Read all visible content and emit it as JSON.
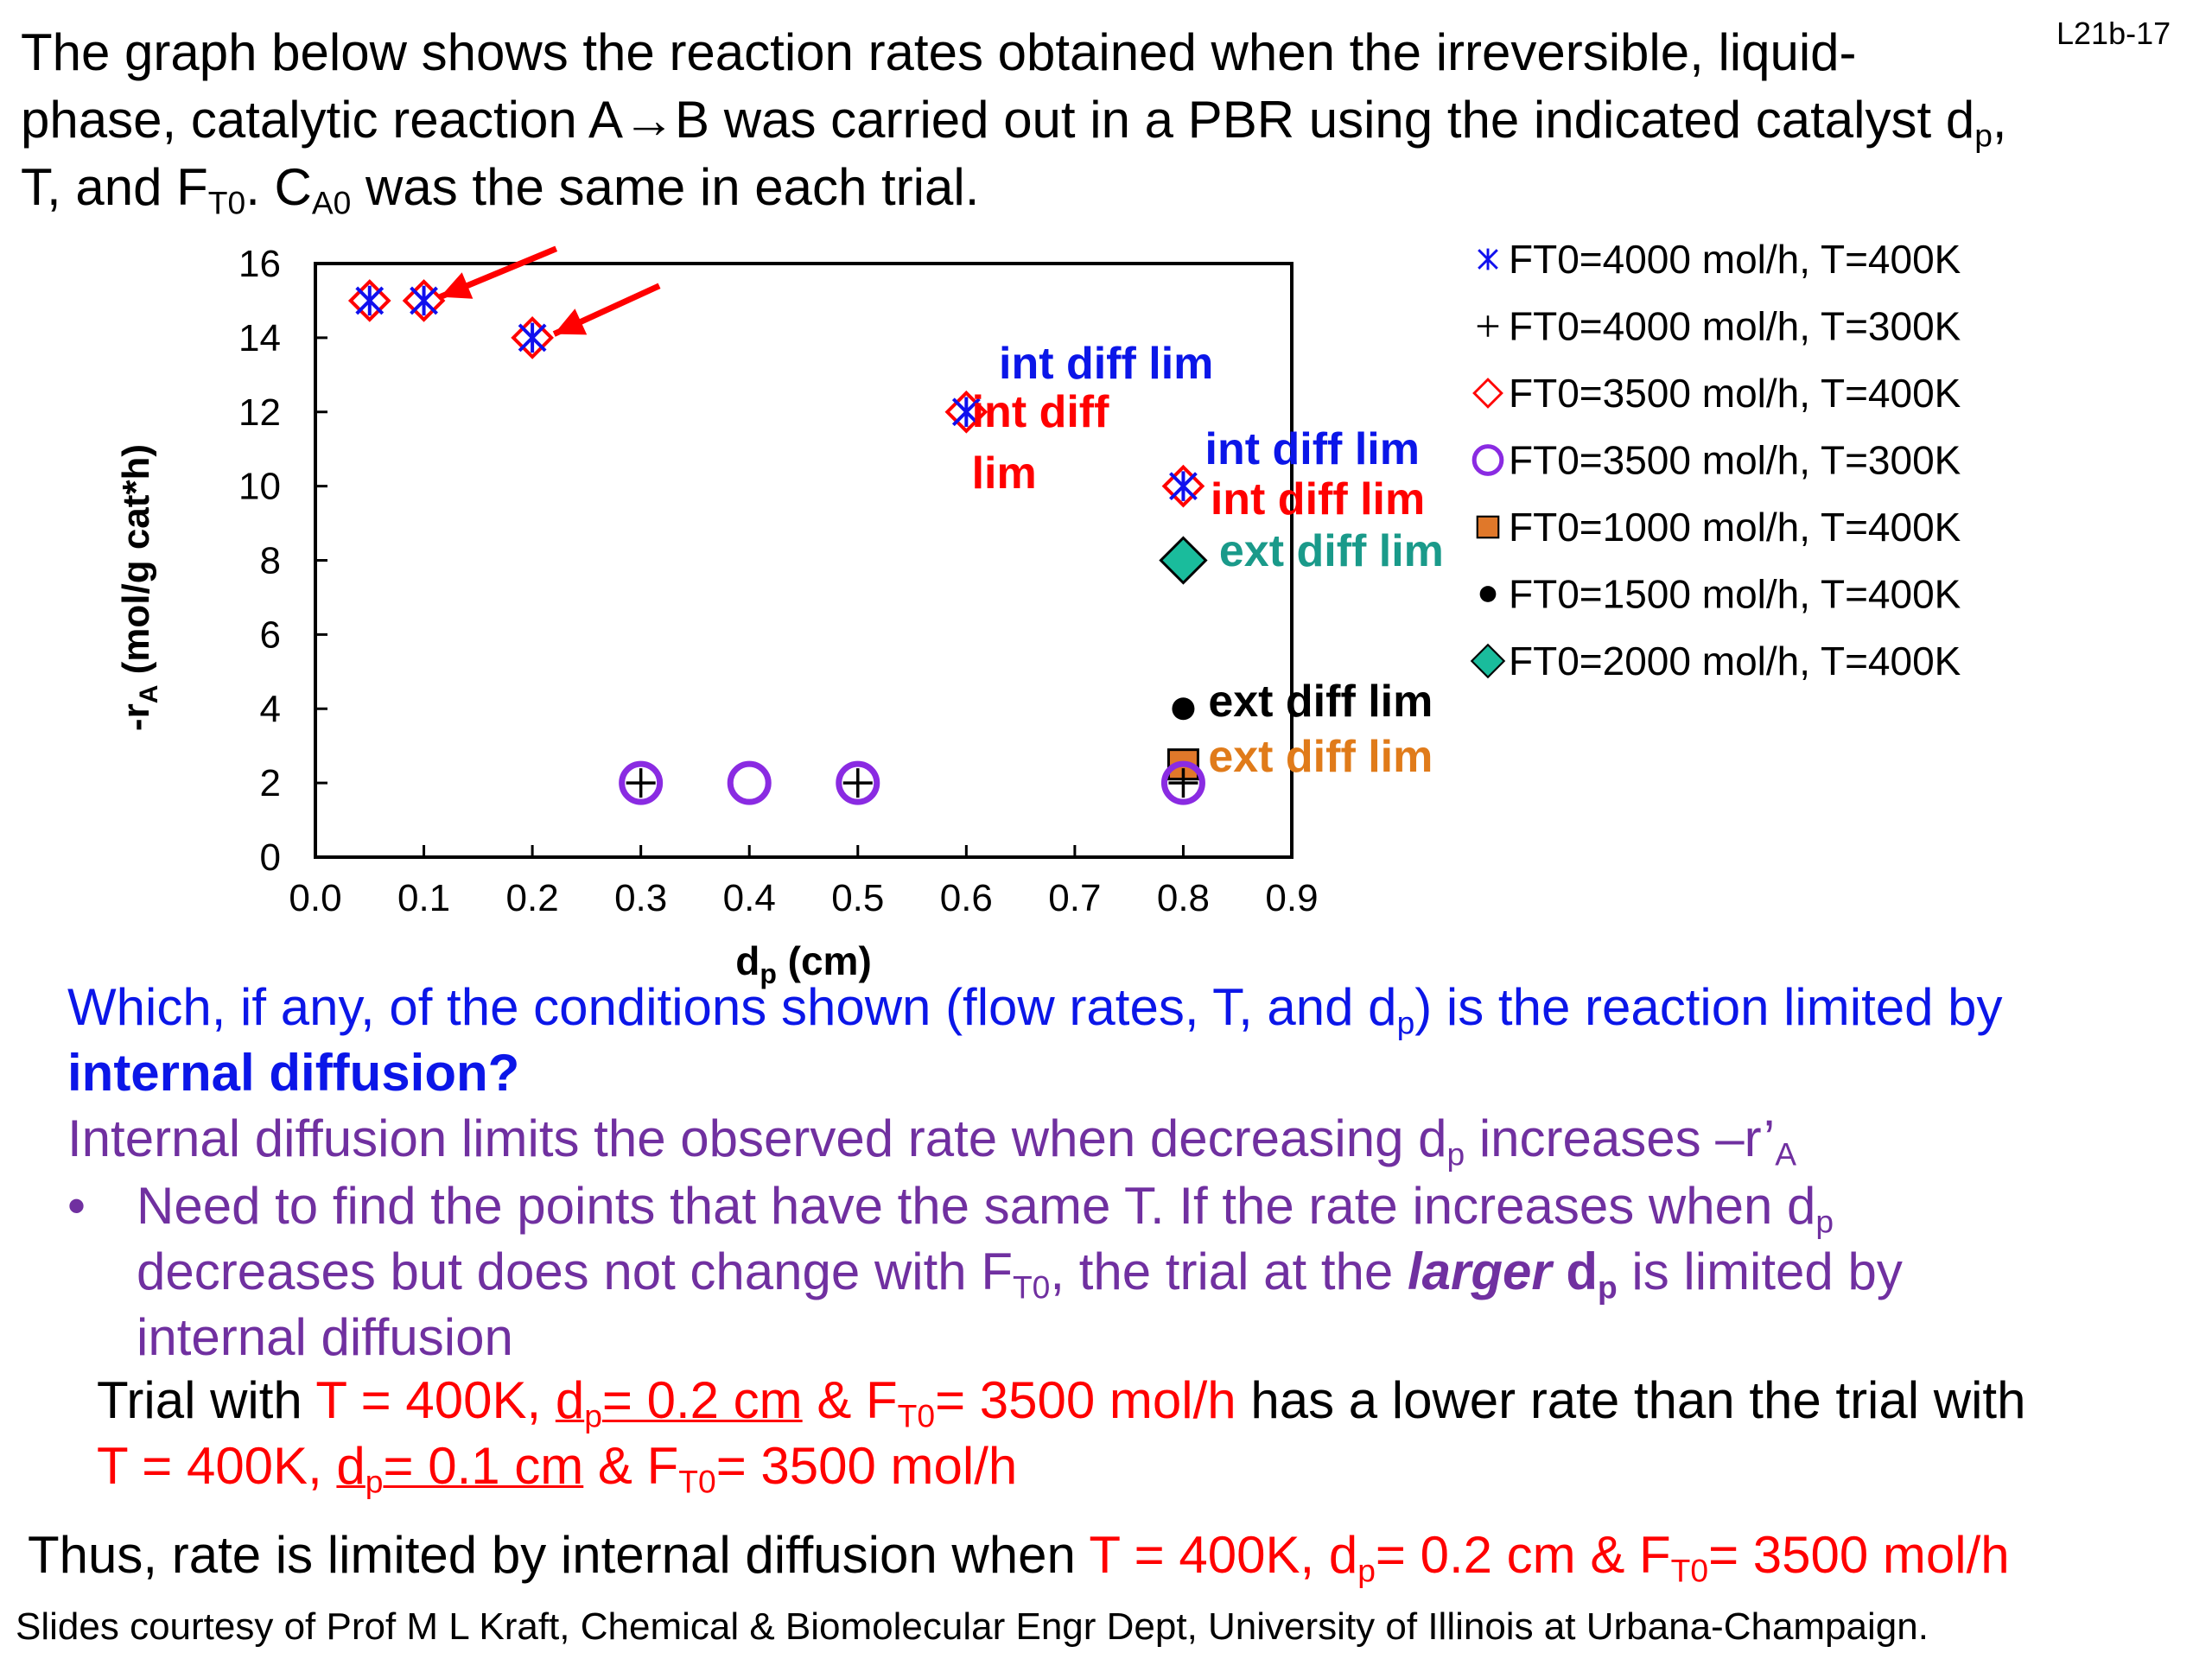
{
  "slide_id": "L21b-17",
  "intro": {
    "line1": "The graph below shows the reaction rates obtained when the irreversible, liquid-",
    "line2_a": "phase, catalytic reaction A→B was carried out in a PBR using the indicated catalyst d",
    "line2_sub": "p",
    "line2_b": ",",
    "line3_a": "T, and F",
    "line3_sub1": "T0",
    "line3_b": ". C",
    "line3_sub2": "A0",
    "line3_c": " was the same in each trial."
  },
  "chart_data": {
    "type": "scatter",
    "xlabel_main": "d",
    "xlabel_sub": "p",
    "xlabel_unit": " (cm)",
    "ylabel_main": "-r",
    "ylabel_sub": "A",
    "ylabel_unit": " (mol/g cat*h)",
    "xlim": [
      0.0,
      0.9
    ],
    "ylim": [
      0,
      16
    ],
    "x_ticks": [
      "0.0",
      "0.1",
      "0.2",
      "0.3",
      "0.4",
      "0.5",
      "0.6",
      "0.7",
      "0.8",
      "0.9"
    ],
    "y_ticks": [
      "0",
      "2",
      "4",
      "6",
      "8",
      "10",
      "12",
      "14",
      "16"
    ],
    "legend_position": "right",
    "series": [
      {
        "name": "FT0=4000 mol/h, T=400K",
        "marker": "star",
        "color": "#1010ee",
        "points": [
          [
            0.05,
            15
          ],
          [
            0.1,
            15
          ],
          [
            0.2,
            14
          ],
          [
            0.6,
            12
          ],
          [
            0.8,
            10
          ]
        ]
      },
      {
        "name": "FT0=4000 mol/h, T=300K",
        "marker": "plus",
        "color": "#000000",
        "points": [
          [
            0.3,
            2
          ],
          [
            0.5,
            2
          ],
          [
            0.8,
            2
          ]
        ]
      },
      {
        "name": "FT0=3500 mol/h, T=400K",
        "marker": "diamond-open",
        "color": "#ff0000",
        "points": [
          [
            0.05,
            15
          ],
          [
            0.1,
            15
          ],
          [
            0.2,
            14
          ],
          [
            0.6,
            12
          ],
          [
            0.8,
            10
          ]
        ]
      },
      {
        "name": "FT0=3500 mol/h, T=300K",
        "marker": "circle-open",
        "color": "#8a2be2",
        "points": [
          [
            0.3,
            2
          ],
          [
            0.4,
            2
          ],
          [
            0.5,
            2
          ],
          [
            0.8,
            2
          ]
        ]
      },
      {
        "name": "FT0=1000 mol/h, T=400K",
        "marker": "square",
        "color": "#e0782a",
        "points": [
          [
            0.8,
            2.5
          ]
        ]
      },
      {
        "name": "FT0=1500 mol/h, T=400K",
        "marker": "dot",
        "color": "#000000",
        "points": [
          [
            0.8,
            4
          ]
        ]
      },
      {
        "name": "FT0=2000 mol/h, T=400K",
        "marker": "diamond",
        "color": "#1abc9c",
        "points": [
          [
            0.8,
            8
          ]
        ]
      }
    ],
    "annotations": [
      {
        "text": "int diff lim",
        "color": "#0b16e8",
        "x": 0.63,
        "y": 12.9
      },
      {
        "text": "int diff",
        "color": "#ff0000",
        "x": 0.605,
        "y": 11.6
      },
      {
        "text": "lim",
        "color": "#ff0000",
        "x": 0.605,
        "y": 9.95
      },
      {
        "text": "int diff lim",
        "color": "#0b16e8",
        "x": 0.82,
        "y": 10.6
      },
      {
        "text": "int diff lim",
        "color": "#ff0000",
        "x": 0.825,
        "y": 9.25
      },
      {
        "text": "ext diff lim",
        "color": "#1a9a8a",
        "x": 0.833,
        "y": 7.85
      },
      {
        "text": "ext diff lim",
        "color": "#000000",
        "x": 0.823,
        "y": 3.8
      },
      {
        "text": "ext diff lim",
        "color": "#e07b1a",
        "x": 0.823,
        "y": 2.3
      }
    ],
    "arrows": [
      {
        "from": [
          0.222,
          16.4
        ],
        "to": [
          0.115,
          15.1
        ],
        "color": "#ff0000"
      },
      {
        "from": [
          0.317,
          15.4
        ],
        "to": [
          0.22,
          14.1
        ],
        "color": "#ff0000"
      }
    ]
  },
  "question": {
    "line1_a": "Which, if any, of the conditions shown (flow rates, T, and d",
    "line1_sub": "p",
    "line1_b": ") is the reaction limited by",
    "line2": "internal diffusion?"
  },
  "answer": {
    "line_a": "Internal diffusion limits the observed rate when decreasing d",
    "line_sub": "p",
    "line_b": " increases –r’",
    "line_sub2": "A"
  },
  "bullet": {
    "symbol": "•",
    "line1_a": "Need to find the points that have the same T. If the rate increases when d",
    "line1_sub": "p",
    "line2_a": "decreases but does not change with F",
    "line2_sub": "T0",
    "line2_b": ", the trial at the ",
    "line2_em": "larger",
    "line2_c": " d",
    "line2_sub2": "p",
    "line2_d": " is limited by",
    "line3": "internal diffusion"
  },
  "trial": {
    "line1_a": "Trial with ",
    "line1_red1": "T = 400K, ",
    "line1_u_a": "d",
    "line1_u_sub": "p",
    "line1_u_b": "= 0.2 cm",
    "line1_red2": " & F",
    "line1_red2_sub": "T0",
    "line1_red3": "= 3500 mol/h",
    "line1_b": " has a lower rate than the trial with",
    "line2_red1": "T = 400K, ",
    "line2_u_a": "d",
    "line2_u_sub": "p",
    "line2_u_b": "= 0.1 cm",
    "line2_red2": " & F",
    "line2_red2_sub": "T0",
    "line2_red3": "= 3500 mol/h"
  },
  "thus": {
    "a": "Thus, rate is limited by internal diffusion when ",
    "red1": "T = 400K, d",
    "red1_sub": "p",
    "red2": "= 0.2 cm & F",
    "red2_sub": "T0",
    "red3": "= 3500 mol/h"
  },
  "credits": "Slides courtesy of Prof M L Kraft, Chemical & Biomolecular Engr Dept, University of Illinois at Urbana-Champaign."
}
